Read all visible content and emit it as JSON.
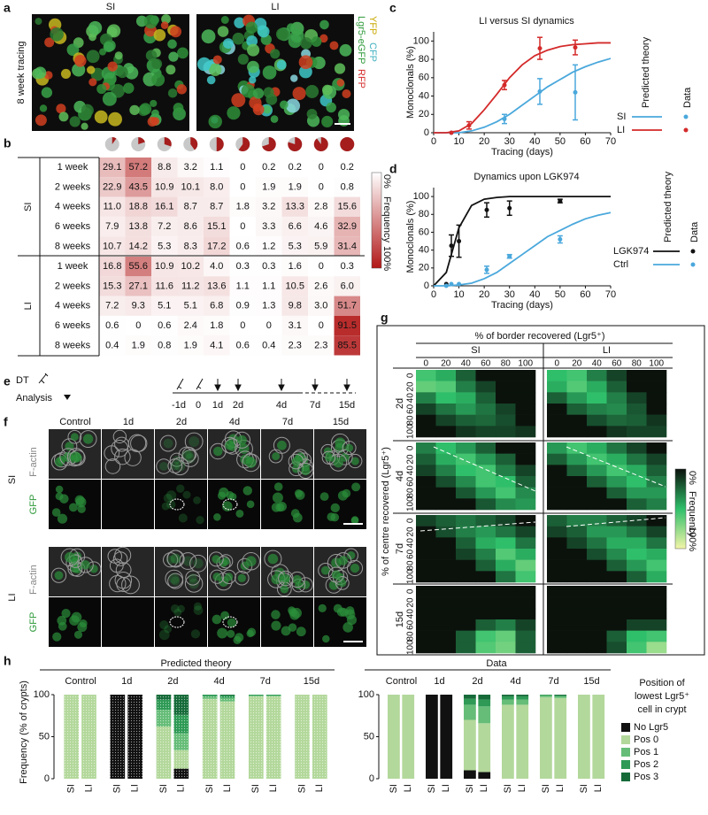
{
  "panel_labels": [
    "a",
    "b",
    "c",
    "d",
    "e",
    "f",
    "g",
    "h"
  ],
  "imaging_a": {
    "columns": [
      "SI",
      "LI"
    ],
    "side_label": "8 week tracing",
    "channels": [
      "Lgr5-eGFP",
      "RFP",
      "YFP",
      "CFP"
    ]
  },
  "table_b": {
    "pies": [
      10,
      20,
      30,
      40,
      50,
      60,
      70,
      80,
      90,
      100
    ],
    "groups": [
      {
        "name": "SI",
        "rows": [
          {
            "label": "1 week",
            "cells": [
              "29.1",
              "57.2",
              "8.8",
              "3.2",
              "1.1",
              "0",
              "0.2",
              "0.2",
              "0",
              "0.2"
            ]
          },
          {
            "label": "2 weeks",
            "cells": [
              "22.9",
              "43.5",
              "10.9",
              "10.1",
              "8.0",
              "0",
              "1.9",
              "1.9",
              "0",
              "0.8"
            ]
          },
          {
            "label": "4 weeks",
            "cells": [
              "11.0",
              "18.8",
              "16.1",
              "8.7",
              "8.7",
              "1.8",
              "3.2",
              "13.3",
              "2.8",
              "15.6"
            ]
          },
          {
            "label": "6 weeks",
            "cells": [
              "7.9",
              "13.8",
              "7.2",
              "8.6",
              "15.1",
              "0",
              "3.3",
              "6.6",
              "4.6",
              "32.9"
            ]
          },
          {
            "label": "8 weeks",
            "cells": [
              "10.7",
              "14.2",
              "5.3",
              "8.3",
              "17.2",
              "0.6",
              "1.2",
              "5.3",
              "5.9",
              "31.4"
            ]
          }
        ]
      },
      {
        "name": "LI",
        "rows": [
          {
            "label": "1 week",
            "cells": [
              "16.8",
              "55.6",
              "10.9",
              "10.2",
              "4.0",
              "0.3",
              "0.3",
              "1.6",
              "0",
              "0.3"
            ]
          },
          {
            "label": "2 weeks",
            "cells": [
              "15.3",
              "27.1",
              "11.6",
              "11.2",
              "13.6",
              "1.1",
              "1.1",
              "10.5",
              "2.6",
              "6.0"
            ]
          },
          {
            "label": "4 weeks",
            "cells": [
              "7.2",
              "9.3",
              "5.1",
              "5.1",
              "6.8",
              "0.9",
              "1.3",
              "9.8",
              "3.0",
              "51.7"
            ]
          },
          {
            "label": "6 weeks",
            "cells": [
              "0.6",
              "0",
              "0.6",
              "2.4",
              "1.8",
              "0",
              "0",
              "3.1",
              "0",
              "91.5"
            ]
          },
          {
            "label": "8 weeks",
            "cells": [
              "0.4",
              "1.9",
              "0.8",
              "1.9",
              "4.1",
              "0.6",
              "0.4",
              "2.3",
              "2.3",
              "85.5"
            ]
          }
        ]
      }
    ],
    "colorbar": {
      "min": "0%",
      "title": "Frequency",
      "max": "100%"
    }
  },
  "chart_data": [
    {
      "type": "line",
      "title": "LI versus SI dynamics",
      "x_label": "Tracing (days)",
      "y_label": "Monoclonals (%)",
      "xlim": [
        0,
        70
      ],
      "ylim": [
        0,
        110
      ],
      "xticks": [
        0,
        10,
        20,
        30,
        40,
        50,
        60,
        70
      ],
      "yticks": [
        0,
        20,
        40,
        60,
        80,
        100
      ],
      "legend_titles": [
        "Predicted theory",
        "Data"
      ],
      "theory_x": [
        0,
        5,
        10,
        15,
        20,
        25,
        30,
        35,
        40,
        45,
        50,
        55,
        60,
        65,
        70
      ],
      "series": [
        {
          "name": "SI",
          "color": "#4aa8dc",
          "theory": [
            0,
            0,
            0,
            2,
            6,
            12,
            20,
            30,
            40,
            50,
            58,
            66,
            72,
            77,
            81
          ],
          "x": [
            7,
            28,
            42,
            56
          ],
          "values": [
            0,
            15,
            45,
            44
          ],
          "errors": [
            null,
            5,
            14,
            30
          ]
        },
        {
          "name": "LI",
          "color": "#d42a2a",
          "theory": [
            0,
            0,
            2,
            10,
            25,
            42,
            60,
            74,
            84,
            90,
            94,
            96,
            97,
            98,
            98
          ],
          "x": [
            7,
            14,
            28,
            42,
            56
          ],
          "values": [
            0,
            8,
            52,
            92,
            93
          ],
          "errors": [
            null,
            4,
            5,
            12,
            8
          ]
        }
      ]
    },
    {
      "type": "line",
      "title": "Dynamics upon LGK974",
      "x_label": "Tracing (days)",
      "y_label": "Monoclonals (%)",
      "xlim": [
        0,
        70
      ],
      "ylim": [
        0,
        110
      ],
      "xticks": [
        0,
        10,
        20,
        30,
        40,
        50,
        60,
        70
      ],
      "yticks": [
        0,
        20,
        40,
        60,
        80,
        100
      ],
      "legend_titles": [
        "Predicted theory",
        "Data"
      ],
      "theory_x": [
        0,
        5,
        10,
        15,
        20,
        25,
        30,
        35,
        40,
        45,
        50,
        55,
        60,
        65,
        70
      ],
      "series": [
        {
          "name": "LGK974",
          "color": "#111111",
          "theory": [
            0,
            15,
            65,
            90,
            97,
            99,
            100,
            100,
            100,
            100,
            100,
            100,
            100,
            100,
            100
          ],
          "x": [
            5,
            7,
            10,
            21,
            30,
            50
          ],
          "values": [
            2,
            45,
            50,
            85,
            87,
            95
          ],
          "errors": [
            null,
            12,
            18,
            8,
            8,
            2
          ]
        },
        {
          "name": "Ctrl",
          "color": "#4aa8dc",
          "theory": [
            0,
            0,
            1,
            3,
            8,
            15,
            25,
            35,
            45,
            55,
            62,
            69,
            75,
            79,
            82
          ],
          "x": [
            5,
            7,
            10,
            21,
            30,
            50
          ],
          "values": [
            0,
            2,
            2,
            18,
            33,
            52
          ],
          "errors": [
            null,
            null,
            null,
            4,
            2,
            4
          ]
        }
      ]
    },
    {
      "type": "stacked_bar",
      "title": "Predicted theory",
      "y_label": "Frequency (% of crypts)",
      "pattern": "dots",
      "groups": [
        "Control",
        "1d",
        "2d",
        "4d",
        "7d",
        "15d"
      ],
      "bar_labels": [
        "SI",
        "LI",
        "SI",
        "LI",
        "SI",
        "LI",
        "SI",
        "LI",
        "SI",
        "LI",
        "SI",
        "LI"
      ],
      "ylim": [
        0,
        100
      ],
      "yticks": [
        0,
        50,
        100
      ],
      "series": [
        {
          "color": "#111111",
          "values": [
            0,
            0,
            100,
            100,
            0,
            12,
            0,
            0,
            0,
            0,
            0,
            0
          ]
        },
        {
          "color": "#b3d89b",
          "values": [
            100,
            100,
            0,
            0,
            62,
            22,
            95,
            92,
            98,
            98,
            100,
            100
          ]
        },
        {
          "color": "#66bd78",
          "values": [
            0,
            0,
            0,
            0,
            20,
            20,
            3,
            4,
            1,
            1,
            0,
            0
          ]
        },
        {
          "color": "#2e9a55",
          "values": [
            0,
            0,
            0,
            0,
            12,
            22,
            2,
            3,
            1,
            1,
            0,
            0
          ]
        },
        {
          "color": "#166b39",
          "values": [
            0,
            0,
            0,
            0,
            6,
            24,
            0,
            1,
            0,
            0,
            0,
            0
          ]
        }
      ]
    },
    {
      "type": "stacked_bar",
      "title": "Data",
      "groups": [
        "Control",
        "1d",
        "2d",
        "4d",
        "7d",
        "15d"
      ],
      "bar_labels": [
        "SI",
        "LI",
        "SI",
        "LI",
        "SI",
        "LI",
        "SI",
        "LI",
        "SI",
        "LI",
        "SI",
        "LI"
      ],
      "ylim": [
        0,
        100
      ],
      "yticks": [
        0,
        50,
        100
      ],
      "legend_title": [
        "Position of",
        "lowest Lgr5⁺",
        "cell in crypt"
      ],
      "series": [
        {
          "name": "No Lgr5",
          "color": "#111111",
          "values": [
            0,
            0,
            100,
            100,
            10,
            8,
            0,
            0,
            0,
            0,
            0,
            0
          ]
        },
        {
          "name": "Pos 0",
          "color": "#b3d89b",
          "values": [
            100,
            100,
            0,
            0,
            60,
            58,
            88,
            88,
            97,
            96,
            100,
            100
          ]
        },
        {
          "name": "Pos 1",
          "color": "#66bd78",
          "values": [
            0,
            0,
            0,
            0,
            18,
            20,
            6,
            6,
            2,
            2,
            0,
            0
          ]
        },
        {
          "name": "Pos 2",
          "color": "#2e9a55",
          "values": [
            0,
            0,
            0,
            0,
            7,
            8,
            4,
            4,
            1,
            1,
            0,
            0
          ]
        },
        {
          "name": "Pos 3",
          "color": "#166b39",
          "values": [
            0,
            0,
            0,
            0,
            5,
            6,
            2,
            2,
            0,
            1,
            0,
            0
          ]
        }
      ]
    }
  ],
  "timeline_e": {
    "labels": [
      "DT",
      "Analysis"
    ],
    "times": [
      "-1d",
      "0",
      "1d",
      "2d",
      "4d",
      "7d",
      "15d"
    ]
  },
  "imaging_f": {
    "columns": [
      "Control",
      "1d",
      "2d",
      "4d",
      "7d",
      "15d"
    ],
    "rows": [
      "SI",
      "LI"
    ],
    "channels": [
      "GFP",
      "F-actin"
    ]
  },
  "heatmap_g": {
    "x_title": "% of border recovered (Lgr5⁺)",
    "y_title": "% of centre recovered (Lgr5⁺)",
    "columns": [
      "SI",
      "LI"
    ],
    "rows": [
      "2d",
      "4d",
      "7d",
      "15d"
    ],
    "ticks": [
      0,
      20,
      40,
      60,
      80,
      100
    ],
    "matrices": [
      [
        [
          [
            30,
            20,
            5,
            0,
            0,
            0
          ],
          [
            40,
            35,
            10,
            2,
            0,
            0
          ],
          [
            10,
            25,
            20,
            5,
            0,
            0
          ],
          [
            2,
            8,
            15,
            8,
            2,
            0
          ],
          [
            0,
            2,
            5,
            6,
            3,
            0
          ],
          [
            0,
            0,
            1,
            2,
            2,
            1
          ]
        ],
        [
          [
            25,
            30,
            10,
            2,
            0,
            0
          ],
          [
            20,
            35,
            20,
            5,
            0,
            0
          ],
          [
            5,
            15,
            25,
            10,
            2,
            0
          ],
          [
            0,
            5,
            10,
            12,
            4,
            0
          ],
          [
            0,
            0,
            3,
            6,
            5,
            1
          ],
          [
            0,
            0,
            0,
            1,
            2,
            2
          ]
        ]
      ],
      [
        [
          [
            10,
            25,
            15,
            5,
            0,
            0
          ],
          [
            5,
            20,
            30,
            15,
            5,
            0
          ],
          [
            2,
            10,
            25,
            30,
            10,
            2
          ],
          [
            0,
            3,
            12,
            30,
            25,
            5
          ],
          [
            0,
            0,
            4,
            15,
            30,
            12
          ],
          [
            0,
            0,
            0,
            4,
            12,
            15
          ]
        ],
        [
          [
            15,
            30,
            20,
            8,
            2,
            0
          ],
          [
            5,
            15,
            30,
            20,
            8,
            2
          ],
          [
            0,
            5,
            15,
            30,
            20,
            5
          ],
          [
            0,
            0,
            5,
            15,
            25,
            10
          ],
          [
            0,
            0,
            0,
            5,
            15,
            15
          ],
          [
            0,
            0,
            0,
            0,
            5,
            10
          ]
        ]
      ],
      [
        [
          [
            2,
            5,
            8,
            5,
            2,
            0
          ],
          [
            0,
            3,
            10,
            15,
            8,
            2
          ],
          [
            0,
            0,
            5,
            20,
            25,
            8
          ],
          [
            0,
            0,
            2,
            10,
            35,
            20
          ],
          [
            0,
            0,
            0,
            5,
            20,
            40
          ],
          [
            0,
            0,
            0,
            0,
            8,
            30
          ]
        ],
        [
          [
            5,
            10,
            10,
            5,
            2,
            0
          ],
          [
            2,
            5,
            15,
            15,
            8,
            2
          ],
          [
            0,
            2,
            8,
            20,
            20,
            8
          ],
          [
            0,
            0,
            3,
            12,
            25,
            20
          ],
          [
            0,
            0,
            0,
            5,
            15,
            30
          ],
          [
            0,
            0,
            0,
            0,
            5,
            20
          ]
        ]
      ],
      [
        [
          [
            0,
            0,
            0,
            0,
            0,
            0
          ],
          [
            0,
            0,
            0,
            0,
            0,
            0
          ],
          [
            0,
            0,
            0,
            0,
            0,
            0
          ],
          [
            0,
            0,
            0,
            5,
            10,
            2
          ],
          [
            0,
            0,
            5,
            30,
            40,
            5
          ],
          [
            0,
            0,
            5,
            35,
            45,
            5
          ]
        ],
        [
          [
            0,
            0,
            0,
            0,
            0,
            0
          ],
          [
            0,
            0,
            0,
            0,
            0,
            0
          ],
          [
            0,
            0,
            0,
            0,
            0,
            0
          ],
          [
            0,
            0,
            0,
            0,
            2,
            2
          ],
          [
            0,
            0,
            0,
            5,
            25,
            30
          ],
          [
            0,
            0,
            0,
            3,
            30,
            60
          ]
        ]
      ]
    ],
    "colorbar": {
      "min": "0%",
      "title": "Frequency",
      "max": "100%"
    }
  }
}
